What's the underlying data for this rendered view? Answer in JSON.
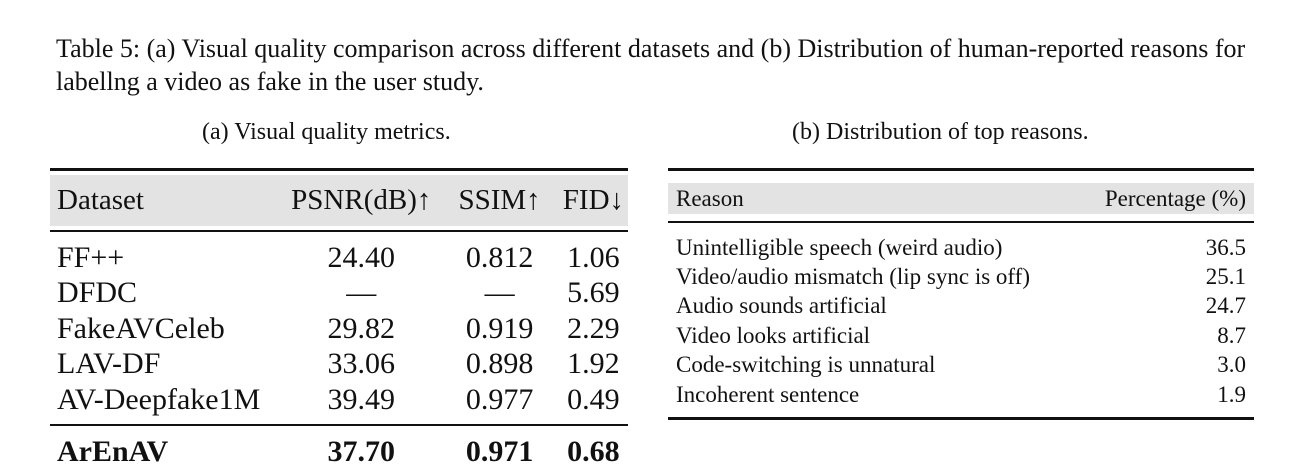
{
  "caption": "Table 5: (a) Visual quality comparison across different datasets and (b) Distribution of human-reported reasons for labellng a video as fake in the user study.",
  "table_a": {
    "subcaption": "(a) Visual quality metrics.",
    "headers": [
      "Dataset",
      "PSNR(dB)↑",
      "SSIM↑",
      "FID↓"
    ],
    "rows": [
      [
        "FF++",
        "24.40",
        "0.812",
        "1.06"
      ],
      [
        "DFDC",
        "—",
        "—",
        "5.69"
      ],
      [
        "FakeAVCeleb",
        "29.82",
        "0.919",
        "2.29"
      ],
      [
        "LAV-DF",
        "33.06",
        "0.898",
        "1.92"
      ],
      [
        "AV-Deepfake1M",
        "39.49",
        "0.977",
        "0.49"
      ]
    ],
    "highlight_row": [
      "ArEnAV",
      "37.70",
      "0.971",
      "0.68"
    ]
  },
  "table_b": {
    "subcaption": "(b) Distribution of top reasons.",
    "headers": [
      "Reason",
      "Percentage (%)"
    ],
    "rows": [
      [
        "Unintelligible speech (weird audio)",
        "36.5"
      ],
      [
        "Video/audio mismatch (lip sync is off)",
        "25.1"
      ],
      [
        "Audio sounds artificial",
        "24.7"
      ],
      [
        "Video looks artificial",
        "8.7"
      ],
      [
        "Code-switching is unnatural",
        "3.0"
      ],
      [
        "Incoherent sentence",
        "1.9"
      ]
    ]
  }
}
